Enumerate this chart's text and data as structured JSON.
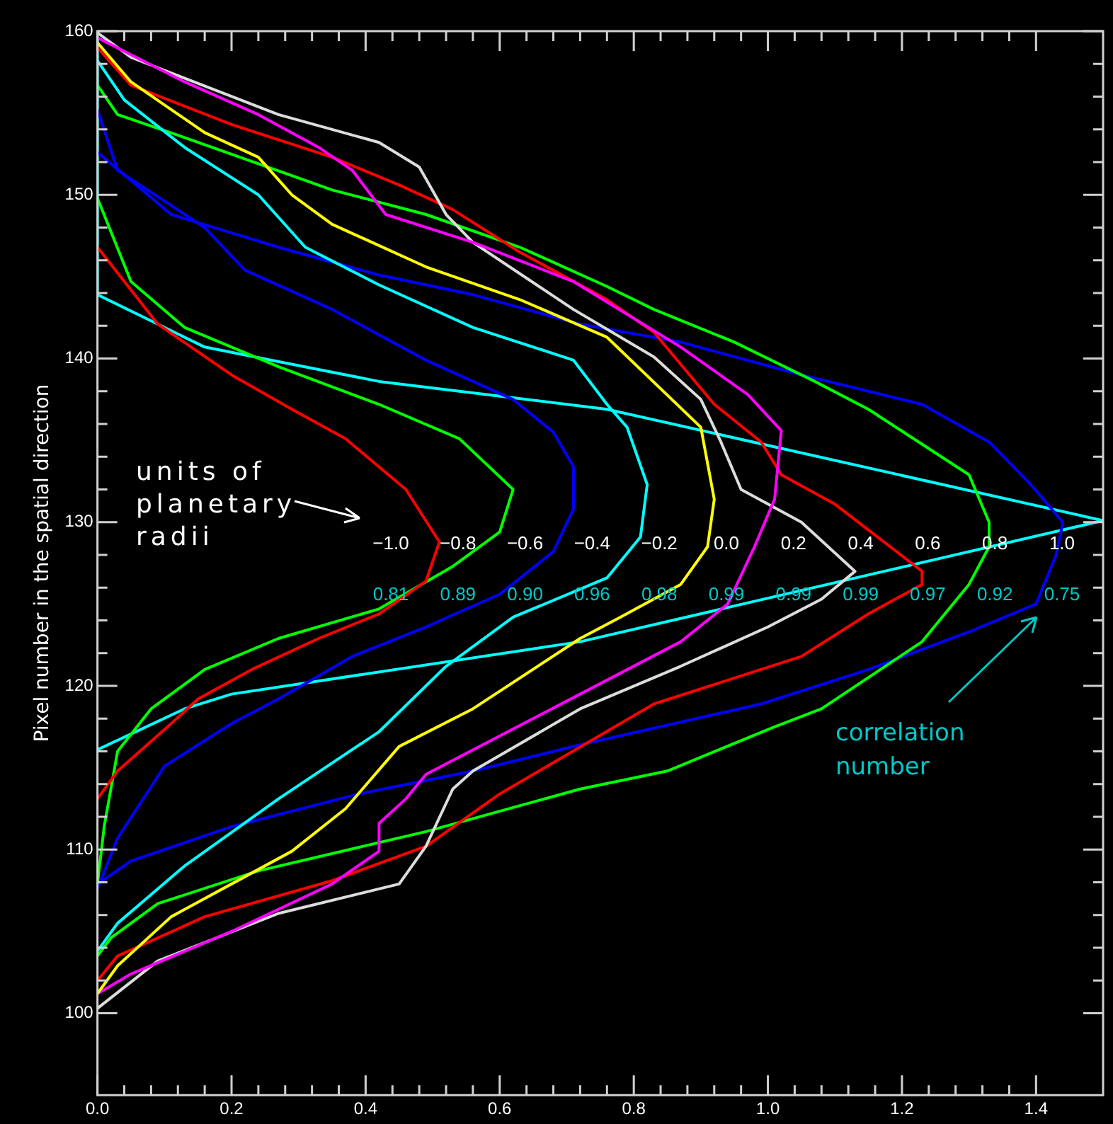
{
  "chart_data": {
    "type": "line",
    "ylabel": "Pixel number in the spatial direction",
    "xlim": [
      0,
      1.5
    ],
    "ylim": [
      95,
      160
    ],
    "xticks": [
      {
        "value": 0,
        "label": "0.0"
      },
      0.2,
      0.4,
      0.6,
      0.8,
      {
        "value": 1,
        "label": "1.0"
      },
      1.2,
      1.4
    ],
    "yticks": [
      100,
      110,
      120,
      130,
      140,
      150,
      160
    ],
    "grid": false,
    "legend": false,
    "marker": "none",
    "line_style": "solid",
    "series": [
      {
        "color": "#ff0000",
        "x": [
          0,
          0.09,
          0.2,
          0.29,
          0.37,
          0.46,
          0.51,
          0.49,
          0.42,
          0.33,
          0.23,
          0.15,
          0.11,
          0.03,
          0
        ],
        "values": [
          146.8,
          142.1,
          139,
          136.9,
          135.1,
          132,
          128.8,
          126.4,
          124.4,
          122.9,
          121,
          119.2,
          117.7,
          114.8,
          113.1
        ]
      },
      {
        "color": "#00ff00",
        "x": [
          0,
          0.05,
          0.13,
          0.27,
          0.42,
          0.54,
          0.62,
          0.6,
          0.53,
          0.42,
          0.27,
          0.16,
          0.08,
          0.03,
          0.01,
          0
        ],
        "values": [
          149.8,
          144.7,
          141.9,
          139.5,
          137.2,
          135.1,
          132,
          129.4,
          127.3,
          124.7,
          122.9,
          121,
          118.6,
          116,
          111.4,
          107.9
        ]
      },
      {
        "color": "#0000ff",
        "x": [
          0,
          0.03,
          0.16,
          0.22,
          0.35,
          0.49,
          0.62,
          0.68,
          0.71,
          0.71,
          0.68,
          0.6,
          0.49,
          0.38,
          0.27,
          0.2,
          0.1,
          0.03,
          0
        ],
        "values": [
          155.2,
          151.5,
          148,
          145.4,
          143,
          139.9,
          137.5,
          135.5,
          133.4,
          130.8,
          128.2,
          125.6,
          123.6,
          121.8,
          119.2,
          117.7,
          115.1,
          110.7,
          107.6
        ]
      },
      {
        "color": "#00ffff",
        "x": [
          0,
          0.04,
          0.13,
          0.24,
          0.31,
          0.42,
          0.56,
          0.71,
          0.76,
          0.79,
          0.82,
          0.81,
          0.76,
          0.62,
          0.52,
          0.42,
          0.27,
          0.13,
          0.03,
          0
        ],
        "values": [
          158.2,
          155.8,
          152.9,
          150,
          146.8,
          144.5,
          141.9,
          139.9,
          137.2,
          135.8,
          132.3,
          129.1,
          126.6,
          124.2,
          121.2,
          117.2,
          113.1,
          109,
          105.5,
          103.8
        ]
      },
      {
        "color": "#ffff00",
        "x": [
          0,
          0.05,
          0.16,
          0.24,
          0.29,
          0.35,
          0.49,
          0.63,
          0.76,
          0.9,
          0.92,
          0.91,
          0.87,
          0.78,
          0.72,
          0.56,
          0.45,
          0.37,
          0.29,
          0.2,
          0.11,
          0.03,
          0
        ],
        "values": [
          159.3,
          156.9,
          153.8,
          152.3,
          150,
          148.2,
          145.6,
          143.6,
          141.3,
          135.8,
          131.4,
          128.5,
          126.2,
          124.2,
          122.9,
          118.6,
          116.3,
          112.5,
          109.9,
          107.9,
          105.9,
          102.9,
          101.2
        ]
      },
      {
        "color": "#ff00ff",
        "x": [
          0,
          0.13,
          0.24,
          0.33,
          0.38,
          0.43,
          0.56,
          0.71,
          0.87,
          0.97,
          1.02,
          1.01,
          0.98,
          0.94,
          0.87,
          0.72,
          0.49,
          0.46,
          0.42,
          0.42,
          0.35,
          0.2,
          0.05,
          0
        ],
        "values": [
          159.6,
          156.9,
          154.9,
          152.9,
          151.5,
          148.8,
          147.1,
          144.7,
          140.7,
          137.8,
          135.6,
          131.4,
          128.5,
          125,
          122.7,
          119.5,
          114.6,
          113.1,
          111.6,
          109.9,
          107.9,
          105,
          102.4,
          101.2
        ]
      },
      {
        "color": "#dcdcdc",
        "x": [
          0,
          0.05,
          0.27,
          0.42,
          0.48,
          0.52,
          0.56,
          0.71,
          0.83,
          0.9,
          0.93,
          0.96,
          1.05,
          1.13,
          1.08,
          1,
          0.87,
          0.72,
          0.56,
          0.53,
          0.49,
          0.45,
          0.27,
          0.09,
          0
        ],
        "values": [
          159.9,
          158.4,
          154.9,
          153.2,
          151.7,
          148.8,
          147.1,
          143,
          140.1,
          137.5,
          134.9,
          132,
          130,
          127,
          125.3,
          123.6,
          121.2,
          118.6,
          114.8,
          113.7,
          110.2,
          107.9,
          106.1,
          103.2,
          100.3
        ]
      },
      {
        "color": "#ff0000",
        "x": [
          0,
          0.05,
          0.2,
          0.35,
          0.45,
          0.53,
          0.63,
          0.76,
          0.83,
          0.92,
          0.99,
          1.02,
          1.1,
          1.23,
          1.23,
          1.15,
          1.05,
          0.83,
          0.6,
          0.49,
          0.35,
          0.16,
          0.03,
          0
        ],
        "values": [
          159,
          156.7,
          154.3,
          152.3,
          150.6,
          149.1,
          146.5,
          143.6,
          141.6,
          137.2,
          134.9,
          132.9,
          131.1,
          127,
          126.2,
          124.4,
          121.8,
          118.9,
          113.4,
          110.2,
          108.1,
          105.9,
          103.5,
          102
        ]
      },
      {
        "color": "#00ff00",
        "x": [
          0,
          0.03,
          0.13,
          0.35,
          0.49,
          0.63,
          0.76,
          0.83,
          0.95,
          1.07,
          1.15,
          1.21,
          1.3,
          1.33,
          1.33,
          1.3,
          1.23,
          1.08,
          1.01,
          0.85,
          0.72,
          0.49,
          0.24,
          0.09,
          0.02,
          0
        ],
        "values": [
          156.7,
          154.9,
          153.5,
          150.3,
          148.8,
          146.8,
          144.4,
          143,
          141,
          138.6,
          136.9,
          135.3,
          132.9,
          130,
          128.5,
          126.2,
          122.7,
          118.6,
          117.5,
          114.8,
          113.7,
          111.1,
          108.7,
          106.7,
          104.6,
          103.5
        ]
      },
      {
        "color": "#0000ff",
        "x": [
          0,
          0.11,
          0.27,
          0.42,
          0.56,
          0.72,
          0.87,
          1.05,
          1.23,
          1.33,
          1.39,
          1.44,
          1.43,
          1.4,
          1.3,
          1.15,
          0.99,
          0.72,
          0.56,
          0.39,
          0.2,
          0.05,
          0
        ],
        "values": [
          152.6,
          148.8,
          146.8,
          145.1,
          143.9,
          142.1,
          141,
          139,
          137.2,
          134.9,
          132.4,
          130,
          128,
          125,
          123.3,
          121,
          118.9,
          116.4,
          114.8,
          113.4,
          111.4,
          109.3,
          107.9
        ]
      },
      {
        "color": "#00ffff",
        "x": [
          0,
          0,
          0.16,
          0.42,
          0.76,
          1.5,
          0.72,
          0.2,
          0.13,
          0
        ],
        "values": [
          160,
          143.9,
          140.7,
          138.6,
          136.9,
          130.1,
          122.7,
          119.5,
          118.6,
          116.1
        ]
      }
    ],
    "annotations": [
      "−1.0",
      "−0.8",
      "−0.6",
      "−0.4",
      "−0.2",
      "0.0",
      "0.2",
      "0.4",
      "0.6",
      "0.8",
      "1.0",
      "0.81",
      "0.89",
      "0.90",
      "0.96",
      "0.98",
      "0.99",
      "0.99",
      "0.99",
      "0.97",
      "0.92",
      "0.75",
      "units of planetary radii",
      "correlation number"
    ]
  }
}
